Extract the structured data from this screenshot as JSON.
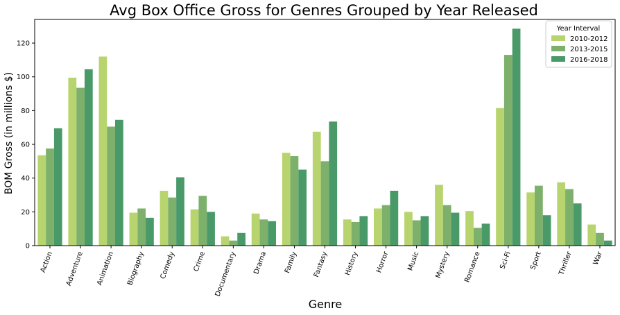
{
  "chart_data": {
    "type": "bar",
    "title": "Avg Box Office Gross for Genres Grouped by Year Released",
    "xlabel": "Genre",
    "ylabel": "BOM Gross (in millions $)",
    "ylim": [
      0,
      134
    ],
    "yticks": [
      0,
      20,
      40,
      60,
      80,
      100,
      120
    ],
    "grid": false,
    "legend": {
      "title": "Year Interval",
      "placement": "top-right"
    },
    "categories": [
      "Action",
      "Adventure",
      "Animation",
      "Biography",
      "Comedy",
      "Crime",
      "Documentary",
      "Drama",
      "Family",
      "Fantasy",
      "History",
      "Horror",
      "Music",
      "Mystery",
      "Romance",
      "Sci-Fi",
      "Sport",
      "Thriller",
      "War"
    ],
    "series": [
      {
        "name": "2010-2012",
        "color": "#b8d46f",
        "values": [
          53.5,
          99.5,
          112,
          19.5,
          32.5,
          21.5,
          5.5,
          19,
          55,
          67.5,
          15.5,
          22,
          20,
          36,
          20.5,
          81.5,
          31.5,
          37.5,
          12.5
        ]
      },
      {
        "name": "2013-2015",
        "color": "#7db06a",
        "values": [
          57.5,
          93.5,
          70.5,
          22,
          28.5,
          29.5,
          3,
          15.5,
          53,
          50,
          14,
          24,
          15,
          24,
          10.5,
          113,
          35.5,
          33.5,
          7.5
        ]
      },
      {
        "name": "2016-2018",
        "color": "#4a9a69",
        "values": [
          69.5,
          104.5,
          74.5,
          16.5,
          40.5,
          20,
          7.5,
          14.5,
          45,
          73.5,
          17.5,
          32.5,
          17.5,
          19.5,
          13,
          128.5,
          18,
          25,
          3
        ]
      }
    ]
  }
}
